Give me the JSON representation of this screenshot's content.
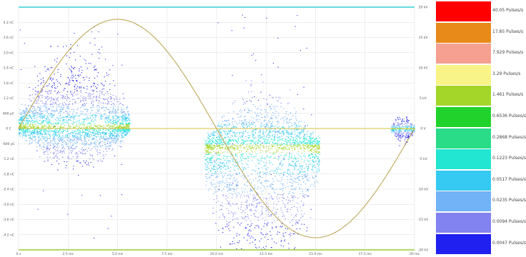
{
  "chart_data": {
    "type": "scatter",
    "title": "",
    "xlabel": "",
    "ylabel": "",
    "x_ticks": [
      "0 s",
      "2.5 ms",
      "5.0 ms",
      "7.5 ms",
      "10.0 ms",
      "12.5 ms",
      "15.0 ms",
      "17.5 ms",
      "20 ms"
    ],
    "x_range": [
      0,
      20
    ],
    "y_left_ticks": [
      "4.2 nC",
      "3.6 nC",
      "3.0 nC",
      "2.4 nC",
      "1.8 nC",
      "1.2 nC",
      "600 pC",
      "0 C",
      "-600 pC",
      "-1.2 nC",
      "-1.8 nC",
      "-2.4 nC",
      "-3.0 nC",
      "-3.6 nC",
      "-4.2 nC"
    ],
    "y_left_range": [
      -4.8,
      4.8
    ],
    "y_right_ticks": [
      "15 kV",
      "10 kV",
      "5 kV",
      "0 V",
      "-5 kV",
      "-10 kV",
      "-15 kV"
    ],
    "y_right_range": [
      -20,
      20
    ],
    "y_right_top_label": "20 kV",
    "y_right_bottom_label": "-20 kV",
    "reference_waveform": {
      "shape": "sine",
      "period_ms": 20,
      "amplitude_kV": 18,
      "phase_start_ms": 0,
      "color": "#b8a04a"
    },
    "clusters": [
      {
        "x_start_ms": 0,
        "x_end_ms": 5.6,
        "y_center_nC": 0.1,
        "spread_nC": 1.3,
        "density": 1.0
      },
      {
        "x_start_ms": 9.4,
        "x_end_ms": 15.2,
        "y_center_nC": -0.8,
        "spread_nC": 2.8,
        "density": 1.0
      },
      {
        "x_start_ms": 18.8,
        "x_end_ms": 20,
        "y_center_nC": 0,
        "spread_nC": 0.25,
        "density": 0.6
      }
    ],
    "grid": true,
    "legend_placement": "right",
    "legend": [
      {
        "label": "40.05 Pulses/s",
        "color": "#ff0000"
      },
      {
        "label": "17.85 Pulses/s",
        "color": "#e88a1a"
      },
      {
        "label": "7.929 Pulses/s",
        "color": "#f5a090"
      },
      {
        "label": "3.29 Pulses/s",
        "color": "#f8f488"
      },
      {
        "label": "1.461 Pulses/s",
        "color": "#a4d62a"
      },
      {
        "label": "0.6536 Pulses/s",
        "color": "#22d22c"
      },
      {
        "label": "0.2868 Pulses/s",
        "color": "#2adb88"
      },
      {
        "label": "0.1223 Pulses/s",
        "color": "#22e6d2"
      },
      {
        "label": "0.0517 Pulses/s",
        "color": "#36caf2"
      },
      {
        "label": "0.0235 Pulses/s",
        "color": "#72b2f6"
      },
      {
        "label": "0.0094 Pulses/s",
        "color": "#8282f0"
      },
      {
        "label": "0.0047 Pulses/s",
        "color": "#2020f0"
      }
    ],
    "colors": {
      "top_line": "#33d0d0",
      "bottom_line": "#99cc33",
      "center_line": "#d6c040",
      "grid": "#dddddd"
    }
  }
}
